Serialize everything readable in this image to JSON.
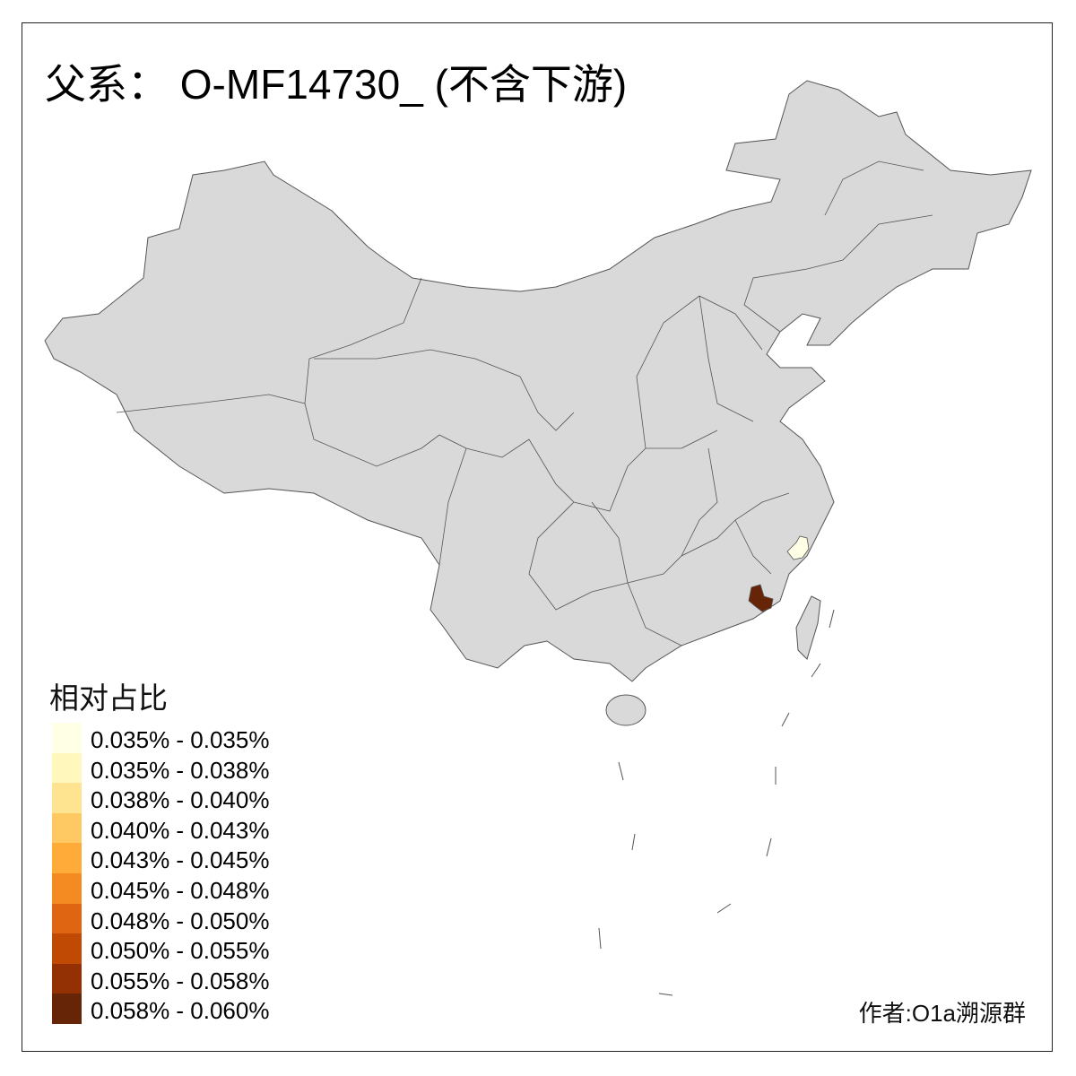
{
  "title": "父系： O-MF14730_ (不含下游)",
  "legend": {
    "title": "相对占比",
    "items": [
      {
        "label": "0.035% - 0.035%",
        "color": "#FFFFE5"
      },
      {
        "label": "0.035% - 0.038%",
        "color": "#FFF7BC"
      },
      {
        "label": "0.038% - 0.040%",
        "color": "#FEE391"
      },
      {
        "label": "0.040% - 0.043%",
        "color": "#FEC962"
      },
      {
        "label": "0.043% - 0.045%",
        "color": "#FEAB3A"
      },
      {
        "label": "0.045% - 0.048%",
        "color": "#F48A22"
      },
      {
        "label": "0.048% - 0.050%",
        "color": "#E06512"
      },
      {
        "label": "0.050% - 0.055%",
        "color": "#C04A04"
      },
      {
        "label": "0.055% - 0.058%",
        "color": "#943104"
      },
      {
        "label": "0.058% - 0.060%",
        "color": "#662506"
      }
    ]
  },
  "map": {
    "base_color": "#D9D9D9",
    "border_color": "#555555",
    "highlighted_regions": [
      {
        "legend_class": 10,
        "color": "#662506"
      },
      {
        "legend_class": 1,
        "color": "#FFFFE5"
      }
    ]
  },
  "author": "作者:O1a溯源群"
}
